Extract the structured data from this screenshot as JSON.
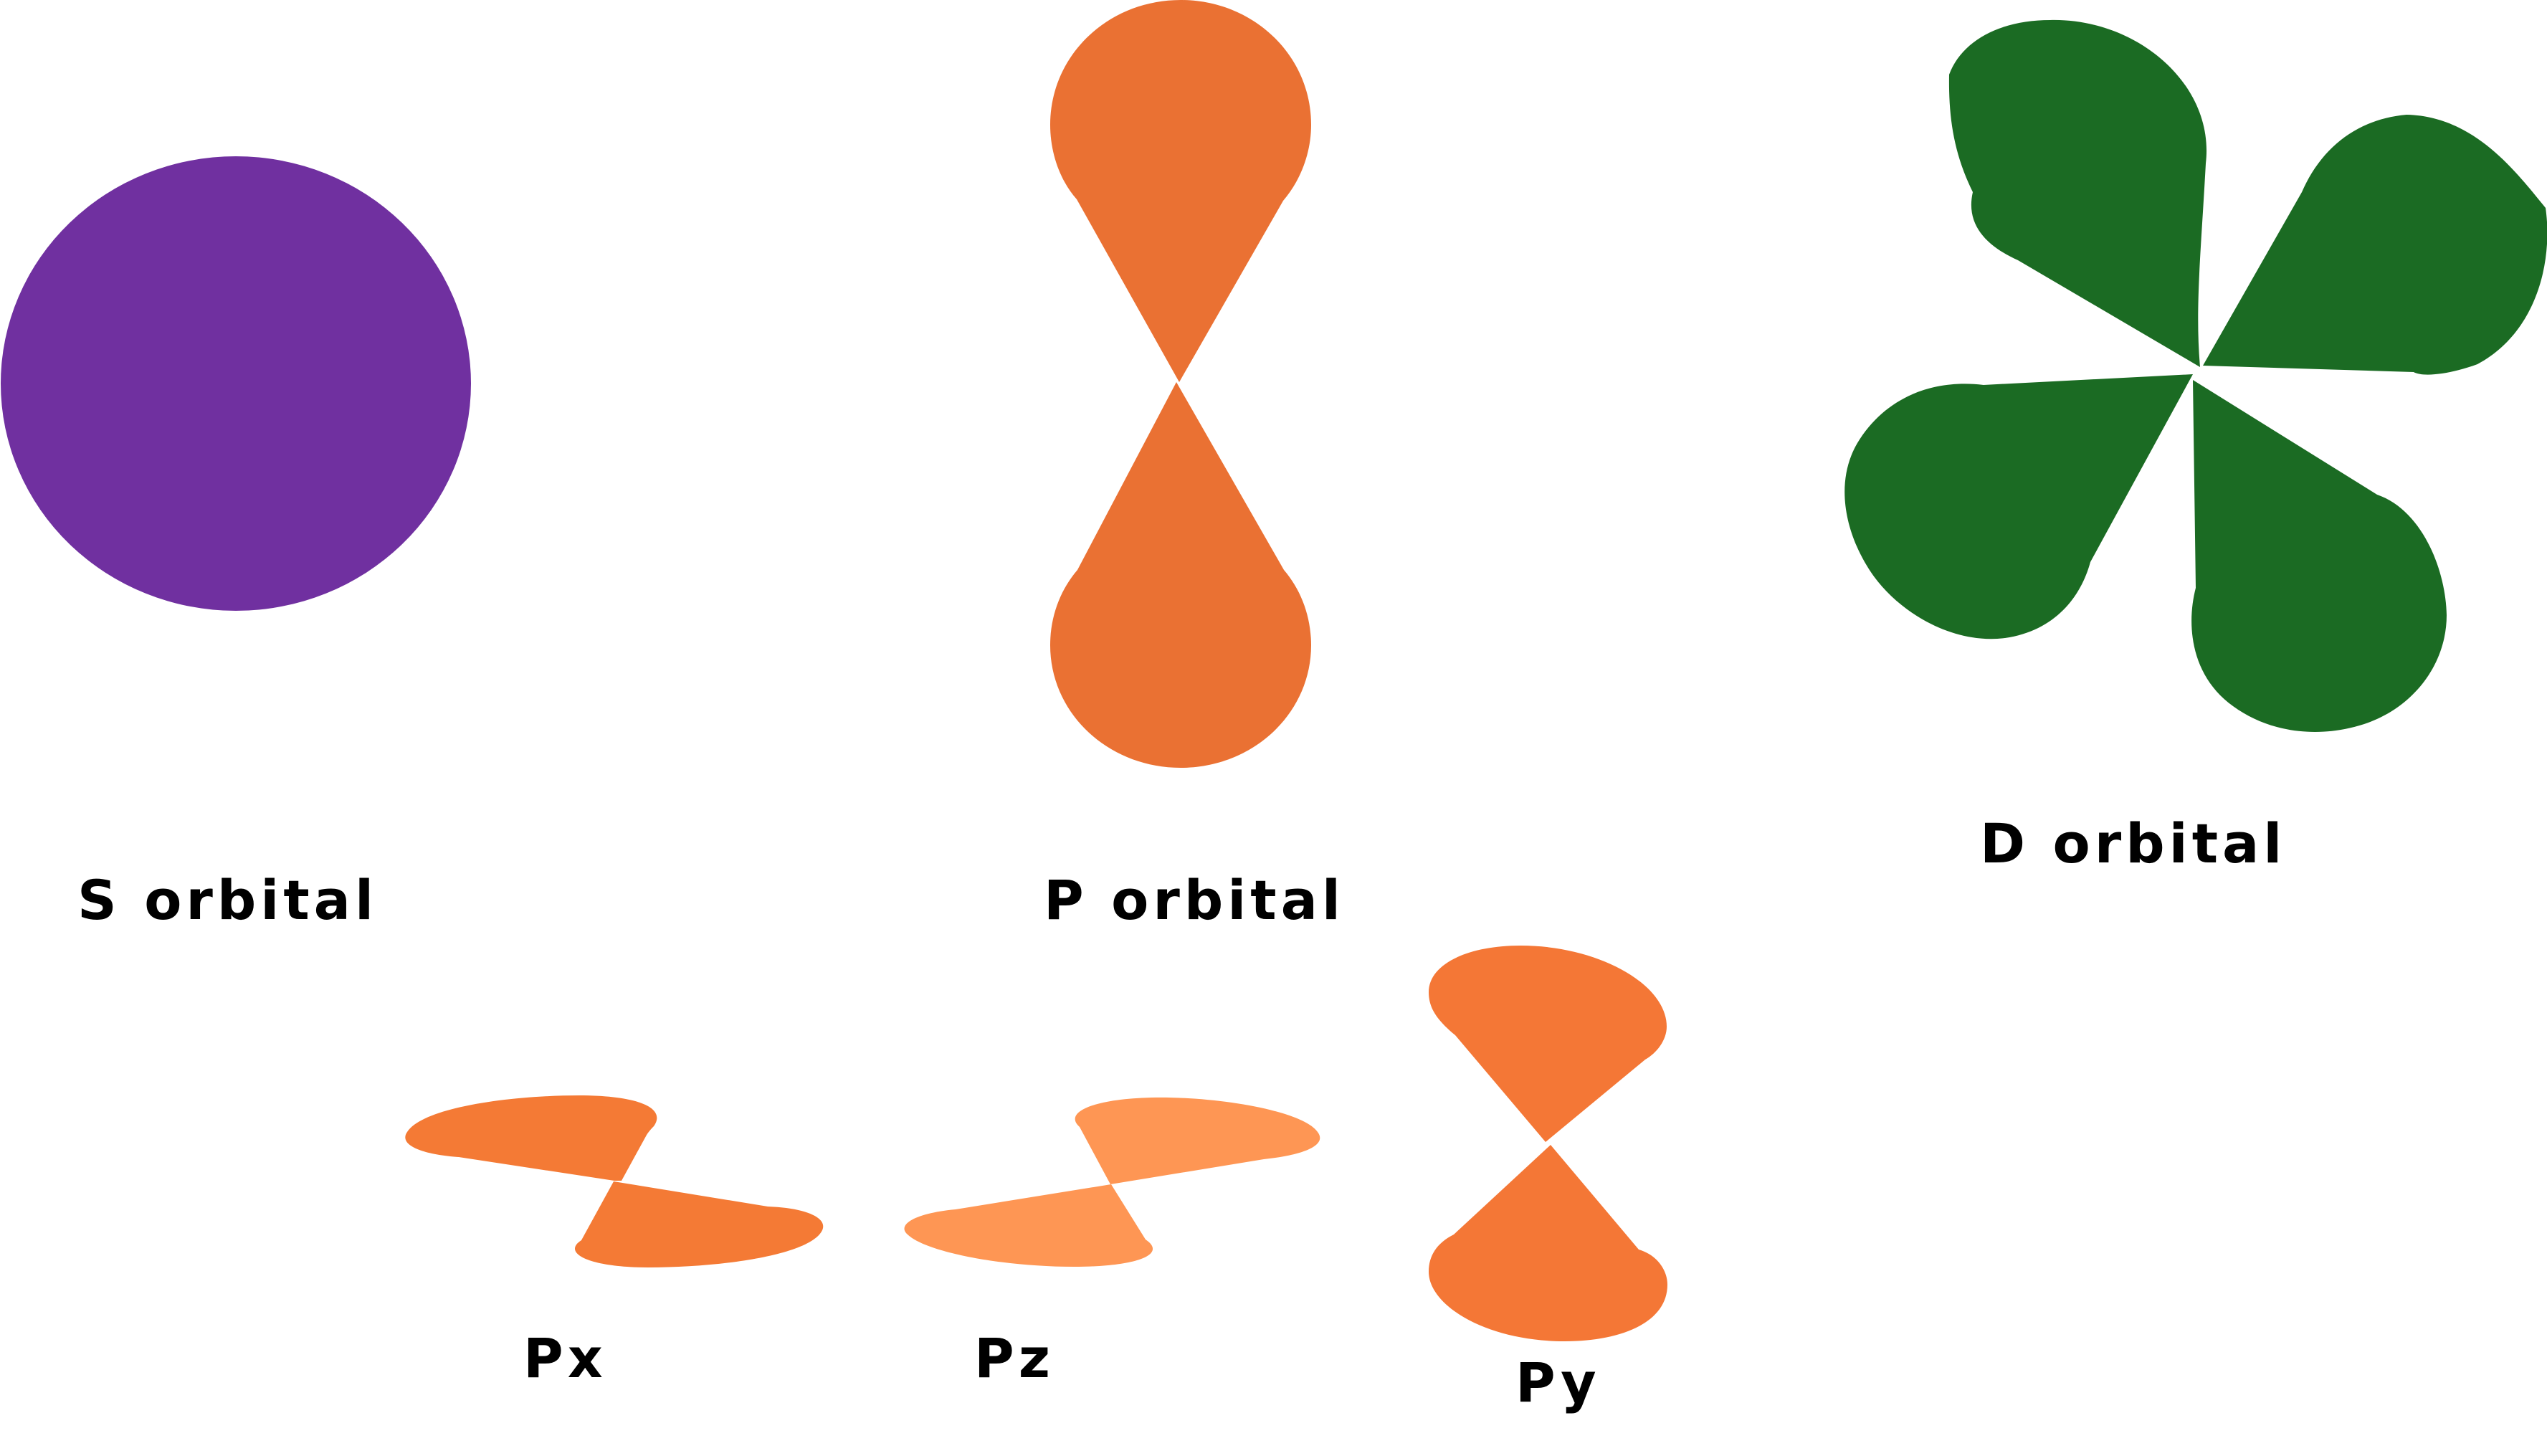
{
  "labels": {
    "s_orbital": "S orbital",
    "p_orbital": "P orbital",
    "d_orbital": "D orbital",
    "px": "Px",
    "pz": "Pz",
    "py": "Py"
  },
  "colors": {
    "s_orbital": "#7030a0",
    "p_orbital": "#ea7133",
    "d_orbital": "#1b6b23",
    "px": "#f47a35",
    "pz": "#fe9654",
    "py": "#f47736",
    "text": "#000000",
    "background": "#ffffff"
  }
}
